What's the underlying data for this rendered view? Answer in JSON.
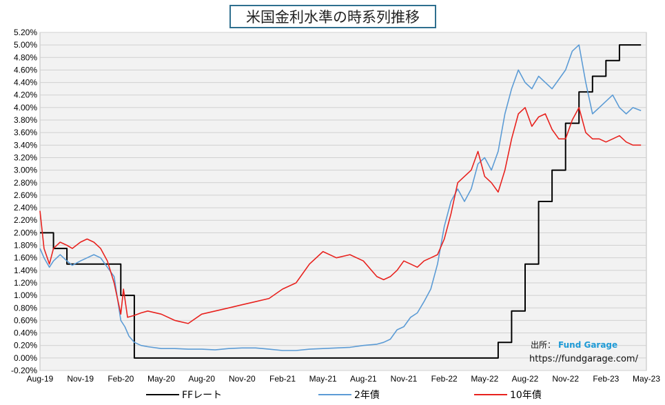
{
  "chart_data": {
    "type": "line",
    "title": "米国金利水準の時系列推移",
    "ylim": [
      -0.2,
      5.2
    ],
    "yticks": [
      "-0.20%",
      "0.00%",
      "0.20%",
      "0.40%",
      "0.60%",
      "0.80%",
      "1.00%",
      "1.20%",
      "1.40%",
      "1.60%",
      "1.80%",
      "2.00%",
      "2.20%",
      "2.40%",
      "2.60%",
      "2.80%",
      "3.00%",
      "3.20%",
      "3.40%",
      "3.60%",
      "3.80%",
      "4.00%",
      "4.20%",
      "4.40%",
      "4.60%",
      "4.80%",
      "5.00%",
      "5.20%"
    ],
    "xticks": [
      "Aug-19",
      "Nov-19",
      "Feb-20",
      "May-20",
      "Aug-20",
      "Nov-20",
      "Feb-21",
      "May-21",
      "Aug-21",
      "Nov-21",
      "Feb-22",
      "May-22",
      "Aug-22",
      "Nov-22",
      "Feb-23",
      "May-23"
    ],
    "grid": true,
    "legend_position": "bottom",
    "series": [
      {
        "name": "FFレート",
        "color": "#000000",
        "kind": "step",
        "x": [
          0,
          1,
          1,
          2,
          2,
          6,
          6,
          7,
          7,
          34,
          34,
          35,
          35,
          36,
          36,
          37,
          37,
          38,
          38,
          39,
          39,
          40,
          40,
          41,
          41,
          42,
          42,
          43,
          43,
          44.6
        ],
        "y": [
          2.0,
          2.0,
          1.75,
          1.75,
          1.5,
          1.5,
          1.0,
          1.0,
          0.0,
          0.0,
          0.25,
          0.25,
          0.75,
          0.75,
          1.5,
          1.5,
          2.5,
          2.5,
          3.0,
          3.0,
          3.75,
          3.75,
          4.25,
          4.25,
          4.5,
          4.5,
          4.75,
          4.75,
          5.0,
          5.0
        ]
      },
      {
        "name": "2年債",
        "color": "#5b9bd5",
        "x": [
          0,
          0.3,
          0.7,
          1.0,
          1.5,
          2.0,
          2.4,
          3.0,
          3.5,
          4.0,
          4.5,
          5.0,
          5.5,
          6.0,
          6.3,
          6.6,
          7.0,
          7.5,
          8.0,
          9.0,
          10.0,
          11.0,
          12.0,
          13.0,
          14.0,
          15.0,
          16.0,
          17.0,
          18.0,
          19.0,
          20.0,
          21.0,
          22.0,
          23.0,
          24.0,
          25.0,
          25.5,
          26.0,
          26.5,
          27.0,
          27.5,
          28.0,
          28.5,
          29.0,
          29.5,
          30.0,
          30.5,
          31.0,
          31.5,
          32.0,
          32.5,
          33.0,
          33.5,
          34.0,
          34.5,
          35.0,
          35.5,
          36.0,
          36.5,
          37.0,
          37.5,
          38.0,
          38.5,
          39.0,
          39.5,
          40.0,
          40.5,
          41.0,
          41.5,
          42.0,
          42.5,
          43.0,
          43.5,
          44.0,
          44.6
        ],
        "y": [
          1.75,
          1.6,
          1.45,
          1.55,
          1.65,
          1.55,
          1.48,
          1.55,
          1.6,
          1.65,
          1.6,
          1.45,
          1.3,
          0.6,
          0.5,
          0.35,
          0.25,
          0.2,
          0.18,
          0.15,
          0.15,
          0.14,
          0.14,
          0.13,
          0.15,
          0.16,
          0.16,
          0.14,
          0.12,
          0.12,
          0.14,
          0.15,
          0.16,
          0.17,
          0.2,
          0.22,
          0.25,
          0.3,
          0.45,
          0.5,
          0.65,
          0.72,
          0.9,
          1.1,
          1.5,
          2.1,
          2.5,
          2.7,
          2.5,
          2.7,
          3.1,
          3.2,
          3.0,
          3.3,
          3.9,
          4.3,
          4.6,
          4.4,
          4.3,
          4.5,
          4.4,
          4.3,
          4.45,
          4.6,
          4.9,
          5.0,
          4.4,
          3.9,
          4.0,
          4.1,
          4.2,
          4.0,
          3.9,
          4.0,
          3.95
        ]
      },
      {
        "name": "10年債",
        "color": "#e8211d",
        "x": [
          0,
          0.3,
          0.7,
          1.0,
          1.5,
          2.0,
          2.4,
          3.0,
          3.5,
          4.0,
          4.5,
          5.0,
          5.5,
          6.0,
          6.2,
          6.5,
          7.0,
          7.5,
          8.0,
          9.0,
          10.0,
          11.0,
          12.0,
          13.0,
          14.0,
          15.0,
          16.0,
          17.0,
          18.0,
          19.0,
          20.0,
          21.0,
          22.0,
          23.0,
          24.0,
          25.0,
          25.5,
          26.0,
          26.5,
          27.0,
          27.5,
          28.0,
          28.5,
          29.0,
          29.5,
          30.0,
          30.5,
          31.0,
          31.5,
          32.0,
          32.5,
          33.0,
          33.5,
          34.0,
          34.5,
          35.0,
          35.5,
          36.0,
          36.5,
          37.0,
          37.5,
          38.0,
          38.5,
          39.0,
          39.5,
          40.0,
          40.5,
          41.0,
          41.5,
          42.0,
          42.5,
          43.0,
          43.5,
          44.0,
          44.6
        ],
        "y": [
          2.35,
          1.75,
          1.5,
          1.75,
          1.85,
          1.8,
          1.75,
          1.85,
          1.9,
          1.85,
          1.75,
          1.55,
          1.2,
          0.7,
          1.1,
          0.65,
          0.68,
          0.72,
          0.75,
          0.7,
          0.6,
          0.55,
          0.7,
          0.75,
          0.8,
          0.85,
          0.9,
          0.95,
          1.1,
          1.2,
          1.5,
          1.7,
          1.6,
          1.65,
          1.55,
          1.3,
          1.25,
          1.3,
          1.4,
          1.55,
          1.5,
          1.45,
          1.55,
          1.6,
          1.65,
          1.9,
          2.3,
          2.8,
          2.9,
          3.0,
          3.3,
          2.9,
          2.8,
          2.65,
          3.0,
          3.5,
          3.9,
          4.0,
          3.7,
          3.85,
          3.9,
          3.65,
          3.5,
          3.5,
          3.8,
          4.0,
          3.6,
          3.5,
          3.5,
          3.45,
          3.5,
          3.55,
          3.45,
          3.4,
          3.4
        ]
      }
    ]
  },
  "source": {
    "label": "出所：",
    "brand": "Fund Garage",
    "url": "https://fundgarage.com/"
  }
}
